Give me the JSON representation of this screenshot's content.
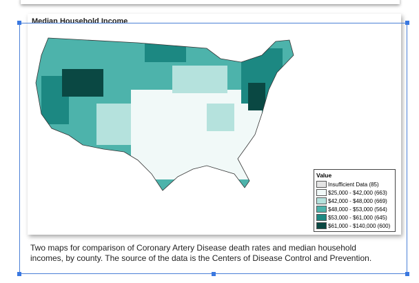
{
  "figure": {
    "title": "Median Household Income",
    "legend": {
      "title": "Value",
      "items": [
        {
          "label": "Insufficient Data (85)",
          "color": "#e4e4e4"
        },
        {
          "label": "$25,000 - $42,000 (663)",
          "color": "#f1f9f8"
        },
        {
          "label": "$42,000 - $48,000 (669)",
          "color": "#b5e2dd"
        },
        {
          "label": "$48,000 - $53,000 (564)",
          "color": "#4db3ab"
        },
        {
          "label": "$53,000 - $61,000 (645)",
          "color": "#1c8882"
        },
        {
          "label": "$61,000 - $140,000 (600)",
          "color": "#0a4843"
        }
      ]
    }
  },
  "caption": "Two maps for comparison of Coronary Artery Disease death rates and median household incomes, by county. The source of the data is the Centers of Disease Control and Prevention."
}
